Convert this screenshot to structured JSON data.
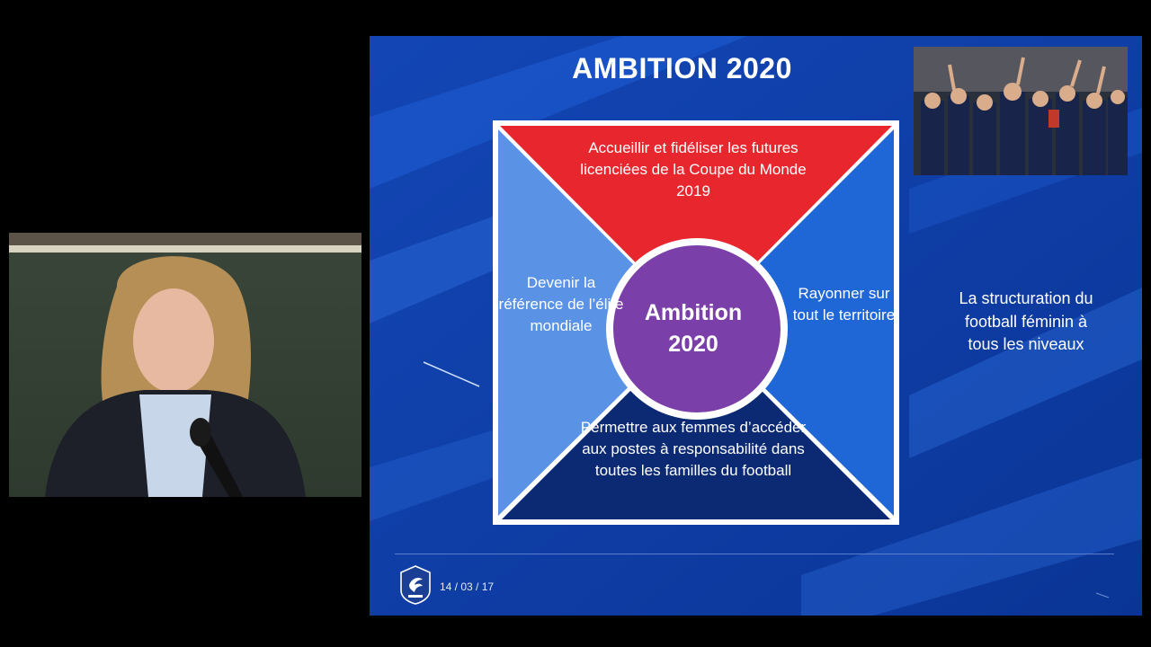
{
  "slide": {
    "title": "AMBITION 2020",
    "quadrants": {
      "top": "Accueillir et fidéliser les futures licenciées de la Coupe du Monde 2019",
      "left": "Devenir la référence de l’élite mondiale",
      "right": "Rayonner sur tout le territoire",
      "bottom": "Permettre aux femmes d’accéder  aux postes à responsabilité dans toutes les familles du football"
    },
    "center_line1": "Ambition",
    "center_line2": "2020",
    "side_text": "La structuration du football féminin à tous les niveaux",
    "date": "14 / 03 / 17",
    "colors": {
      "slide_bg": "#0e3fa8",
      "top": "#e8262e",
      "left": "#5a93e6",
      "right": "#1f66d6",
      "bottom": "#0b2a73",
      "center": "#7a3fa8"
    }
  },
  "icons": {
    "logo": "ffff-logo-icon"
  }
}
